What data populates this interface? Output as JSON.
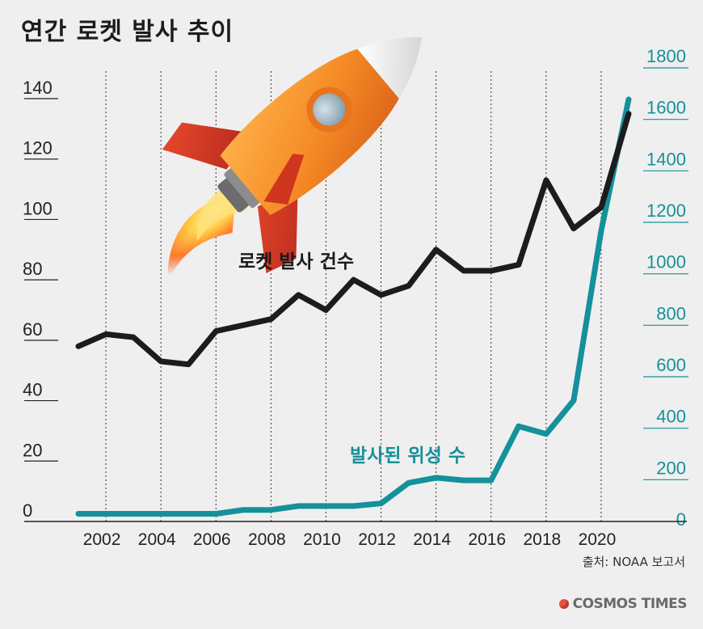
{
  "title": "연간 로켓 발사 추이",
  "source": "출처: NOAA 보고서",
  "brand": "COSMOS TIMES",
  "rocket_icon": "rocket-icon",
  "colors": {
    "launches": "#1c1c1c",
    "satellites": "#14919a",
    "background": "#efefef"
  },
  "chart_data": {
    "type": "line",
    "x": [
      2001,
      2002,
      2003,
      2004,
      2005,
      2006,
      2007,
      2008,
      2009,
      2010,
      2011,
      2012,
      2013,
      2014,
      2015,
      2016,
      2017,
      2018,
      2019,
      2020,
      2021
    ],
    "x_tick_labels": [
      "2002",
      "2004",
      "2006",
      "2008",
      "2010",
      "2012",
      "2014",
      "2016",
      "2018",
      "2020"
    ],
    "left_axis": {
      "ylim": [
        0,
        140
      ],
      "tick_labels": [
        "0",
        "20",
        "40",
        "60",
        "80",
        "100",
        "120",
        "140"
      ]
    },
    "right_axis": {
      "ylim": [
        0,
        1800
      ],
      "tick_labels": [
        "0",
        "200",
        "400",
        "600",
        "800",
        "1000",
        "1200",
        "1400",
        "1600",
        "1800"
      ]
    },
    "grid": "vertical dotted lines at labeled years",
    "series": [
      {
        "name": "로켓 발사 건수",
        "axis": "left",
        "values": [
          58,
          62,
          61,
          53,
          52,
          63,
          65,
          67,
          75,
          70,
          80,
          75,
          78,
          90,
          83,
          83,
          85,
          113,
          97,
          104,
          135
        ]
      },
      {
        "name": "발사된 위성 수",
        "axis": "right",
        "values": [
          30,
          30,
          30,
          30,
          30,
          30,
          45,
          45,
          60,
          60,
          60,
          70,
          150,
          170,
          160,
          160,
          370,
          340,
          470,
          1130,
          1640
        ]
      }
    ]
  }
}
